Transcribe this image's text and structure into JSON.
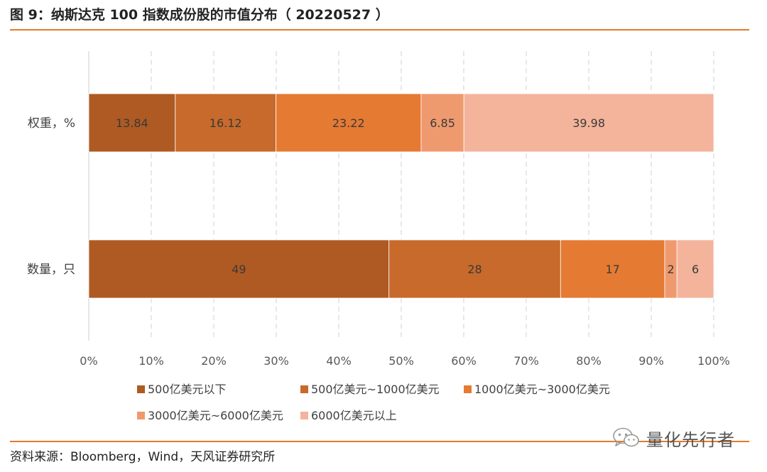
{
  "figure": {
    "title": "图 9：纳斯达克 100 指数成份股的市值分布（ 20220527 ）",
    "source": "资料来源：Bloomberg，Wind，天风证券研究所",
    "watermark": "量化先行者"
  },
  "chart_data": {
    "type": "bar",
    "orientation": "horizontal",
    "stacked": true,
    "percent_stacked": true,
    "categories": [
      "权重，%",
      "数量，只"
    ],
    "series": [
      {
        "name": "500亿美元以下",
        "color": "#ae5a22",
        "values": [
          13.84,
          49
        ],
        "labels": [
          "13.84",
          "49"
        ]
      },
      {
        "name": "500亿美元~1000亿美元",
        "color": "#c76a2b",
        "values": [
          16.12,
          28
        ],
        "labels": [
          "16.12",
          "28"
        ]
      },
      {
        "name": "1000亿美元~3000亿美元",
        "color": "#e57a33",
        "values": [
          23.22,
          17
        ],
        "labels": [
          "23.22",
          "17"
        ]
      },
      {
        "name": "3000亿美元~6000亿美元",
        "color": "#ef9a6e",
        "values": [
          6.85,
          2
        ],
        "labels": [
          "6.85",
          "2"
        ]
      },
      {
        "name": "6000亿美元以上",
        "color": "#f3b49b",
        "values": [
          39.98,
          6
        ],
        "labels": [
          "39.98",
          "6"
        ]
      }
    ],
    "x_ticks": [
      "0%",
      "10%",
      "20%",
      "30%",
      "40%",
      "50%",
      "60%",
      "70%",
      "80%",
      "90%",
      "100%"
    ],
    "xlim": [
      0,
      100
    ],
    "grid": "vertical dashed",
    "legend_position": "bottom"
  }
}
